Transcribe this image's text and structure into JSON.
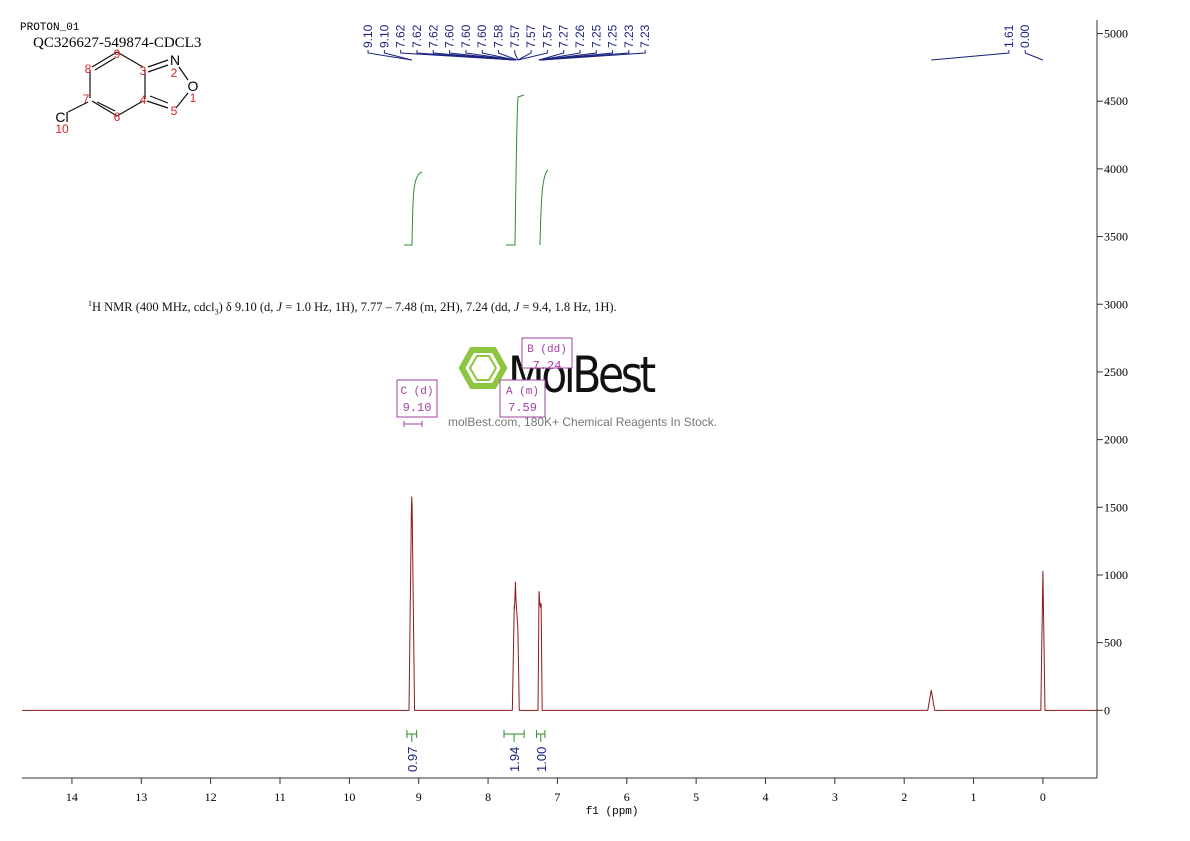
{
  "header": {
    "experiment": "PROTON_01",
    "sample": "QC326627-549874-CDCL3"
  },
  "structure": {
    "atom_labels": [
      "N",
      "O",
      "Cl"
    ],
    "atom_numbers": [
      "1",
      "2",
      "3",
      "4",
      "5",
      "6",
      "7",
      "8",
      "9",
      "10"
    ]
  },
  "nmr_text": [
    "1",
    "H NMR (400 MHz, cdcl",
    "3",
    ") δ 9.10 (d, ",
    "J",
    " = 1.0 Hz, 1H), 7.77 – 7.48 (m, 2H), 7.24 (dd, ",
    "J",
    " = 9.4, 1.8 Hz, 1H)."
  ],
  "watermark": {
    "brand": "MolBest",
    "tagline": "molBest.com, 180K+ Chemical Reagents In Stock."
  },
  "chart_data": {
    "type": "line",
    "color": "#8b1a1a",
    "x_label": "f1 (ppm)",
    "x": [
      14.72,
      9.14,
      9.105,
      9.1,
      9.095,
      9.06,
      7.65,
      7.622,
      7.618,
      7.605,
      7.598,
      7.585,
      7.575,
      7.57,
      7.55,
      7.28,
      7.265,
      7.255,
      7.245,
      7.235,
      7.22,
      1.66,
      1.61,
      1.56,
      0.03,
      0.0,
      -0.03,
      -0.78
    ],
    "values": [
      0,
      0,
      1500,
      1580,
      1500,
      0,
      0,
      780,
      750,
      950,
      820,
      720,
      640,
      600,
      0,
      0,
      880,
      800,
      760,
      790,
      0,
      0,
      150,
      0,
      0,
      1030,
      0,
      0
    ],
    "xlim": [
      14.72,
      -0.78
    ],
    "xticks": [
      14,
      13,
      12,
      11,
      10,
      9,
      8,
      7,
      6,
      5,
      4,
      3,
      2,
      1,
      0
    ],
    "ylim": [
      -500,
      5100
    ],
    "yticks": [
      0,
      500,
      1000,
      1500,
      2000,
      2500,
      3000,
      3500,
      4000,
      4500,
      5000
    ],
    "peak_labels": [
      {
        "value": 9.1,
        "label": "9.10"
      },
      {
        "value": 9.1,
        "label": "9.10"
      },
      {
        "value": 7.62,
        "label": "7.62"
      },
      {
        "value": 7.62,
        "label": "7.62"
      },
      {
        "value": 7.62,
        "label": "7.62"
      },
      {
        "value": 7.6,
        "label": "7.60"
      },
      {
        "value": 7.6,
        "label": "7.60"
      },
      {
        "value": 7.6,
        "label": "7.60"
      },
      {
        "value": 7.58,
        "label": "7.58"
      },
      {
        "value": 7.57,
        "label": "7.57"
      },
      {
        "value": 7.57,
        "label": "7.57"
      },
      {
        "value": 7.57,
        "label": "7.57"
      },
      {
        "value": 7.27,
        "label": "7.27"
      },
      {
        "value": 7.26,
        "label": "7.26"
      },
      {
        "value": 7.25,
        "label": "7.25"
      },
      {
        "value": 7.25,
        "label": "7.25"
      },
      {
        "value": 7.23,
        "label": "7.23"
      },
      {
        "value": 7.23,
        "label": "7.23"
      },
      {
        "value": 1.61,
        "label": "1.61"
      },
      {
        "value": 0.0,
        "label": "0.00"
      }
    ],
    "integrals": [
      {
        "label": "0.97",
        "from": 9.17,
        "to": 9.03
      },
      {
        "label": "1.94",
        "from": 7.77,
        "to": 7.48
      },
      {
        "label": "1.00",
        "from": 7.3,
        "to": 7.18
      }
    ],
    "multiplets": [
      {
        "name": "C (d)",
        "shift": "9.10"
      },
      {
        "name": "A (m)",
        "shift": "7.59"
      },
      {
        "name": "B (dd)",
        "shift": "7.24"
      }
    ]
  }
}
